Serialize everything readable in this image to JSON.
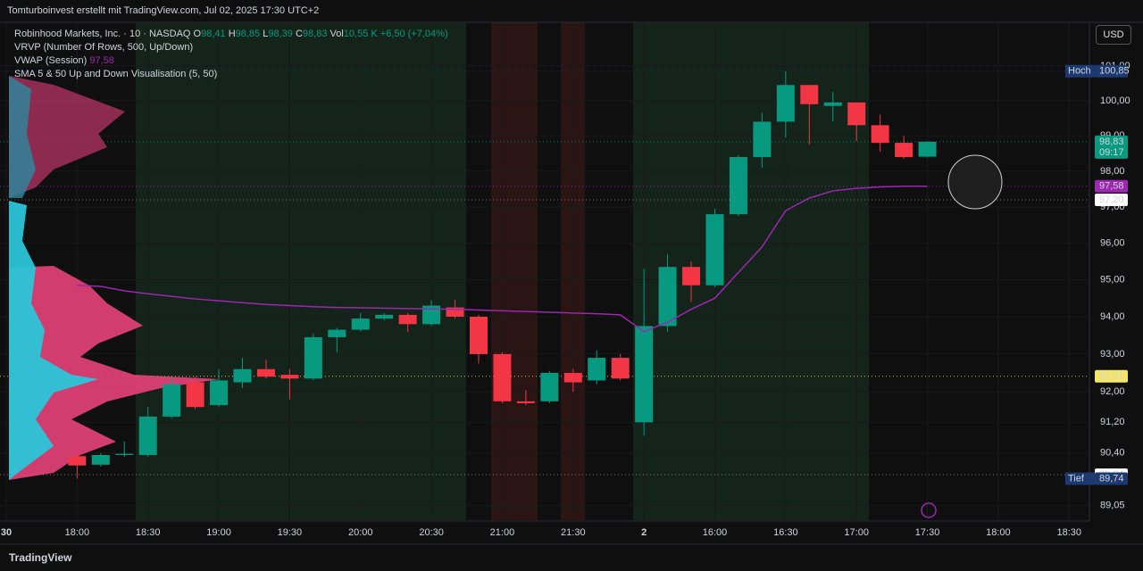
{
  "header": {
    "title": "Tomturboinvest erstellt mit TradingView.com, Jul 02, 2025 17:30 UTC+2"
  },
  "legend": {
    "symbol": "Robinhood Markets, Inc. · 10 · NASDAQ",
    "open_label": "O",
    "open": "98,41",
    "high_label": "H",
    "high": "98,85",
    "low_label": "L",
    "low": "98,39",
    "close_label": "C",
    "close": "98,83",
    "volume_label": "Vol",
    "volume": "10,55 K",
    "change": "+6,50 (+7,04%)"
  },
  "indicators": [
    {
      "name": "VRVP (Number Of Rows, 500, Up/Down)"
    },
    {
      "name": "VWAP (Session)",
      "value": "97,58"
    },
    {
      "name": "SMA 5 & 50 Up and Down Visualisation (5, 50)"
    }
  ],
  "currency": "USD",
  "footer": "TradingView",
  "chart_data": {
    "type": "candlestick",
    "log_scale": true,
    "grid": true,
    "up_color": "#089981",
    "down_color": "#f23645",
    "categories": [
      "30",
      null,
      null,
      "18:00",
      null,
      null,
      "18:30",
      null,
      null,
      "19:00",
      null,
      null,
      "19:30",
      null,
      null,
      "20:00",
      null,
      null,
      "20:30",
      null,
      null,
      "21:00",
      null,
      null,
      "21:30",
      null,
      null,
      "2",
      null,
      null,
      "16:00",
      null,
      null,
      "16:30",
      null,
      null,
      "17:00",
      null,
      null,
      "17:30",
      null,
      null,
      "18:00",
      null,
      null,
      "18:30"
    ],
    "open": [
      null,
      null,
      null,
      90.32,
      90.1,
      90.35,
      90.35,
      91.35,
      92.25,
      91.65,
      92.25,
      92.6,
      92.45,
      92.35,
      93.45,
      93.65,
      93.95,
      94.05,
      93.8,
      94.25,
      94.0,
      93.0,
      91.75,
      91.75,
      92.5,
      92.3,
      92.9,
      91.2,
      93.75,
      95.35,
      94.85,
      96.8,
      98.4,
      99.4,
      100.45,
      99.85,
      99.95,
      99.3,
      98.8,
      98.41,
      null,
      null,
      null,
      null,
      null,
      null
    ],
    "high": [
      null,
      null,
      null,
      90.45,
      90.4,
      90.7,
      91.6,
      92.35,
      92.4,
      92.6,
      92.9,
      92.85,
      92.6,
      93.55,
      93.7,
      94.1,
      94.1,
      94.1,
      94.45,
      94.45,
      94.05,
      93.05,
      92.05,
      92.55,
      92.6,
      93.1,
      93.0,
      95.3,
      95.7,
      95.5,
      96.95,
      98.45,
      99.65,
      100.85,
      100.45,
      100.25,
      99.95,
      99.6,
      99.0,
      98.85,
      null,
      null,
      null,
      null,
      null,
      null
    ],
    "low": [
      null,
      null,
      null,
      89.74,
      90.05,
      90.3,
      90.3,
      91.3,
      91.55,
      91.6,
      92.1,
      92.35,
      91.8,
      92.3,
      93.05,
      93.6,
      93.9,
      93.6,
      93.75,
      93.95,
      92.75,
      91.7,
      91.65,
      91.7,
      92.0,
      92.2,
      92.3,
      90.85,
      93.6,
      94.4,
      94.8,
      96.75,
      98.1,
      98.95,
      98.75,
      99.4,
      98.85,
      98.55,
      98.35,
      98.39,
      null,
      null,
      null,
      null,
      null,
      null
    ],
    "close": [
      null,
      null,
      null,
      90.08,
      90.35,
      90.38,
      91.35,
      92.2,
      91.6,
      92.3,
      92.6,
      92.4,
      92.35,
      93.45,
      93.65,
      93.95,
      94.05,
      93.8,
      94.3,
      94.0,
      93.0,
      91.75,
      91.7,
      92.5,
      92.25,
      92.9,
      92.35,
      93.75,
      95.35,
      94.85,
      96.8,
      98.4,
      99.4,
      100.45,
      99.9,
      99.95,
      99.3,
      98.8,
      98.4,
      98.83,
      null,
      null,
      null,
      null,
      null,
      null
    ],
    "lines": [
      {
        "color": "#9c27b0",
        "values": [
          null,
          null,
          null,
          94.85,
          94.82,
          94.7,
          94.62,
          94.55,
          94.48,
          94.43,
          94.38,
          94.33,
          94.3,
          94.27,
          94.25,
          94.24,
          94.23,
          94.22,
          94.21,
          94.2,
          94.18,
          94.16,
          94.14,
          94.12,
          94.1,
          94.08,
          94.05,
          93.6,
          93.85,
          94.2,
          94.5,
          95.2,
          95.9,
          96.9,
          97.25,
          97.45,
          97.52,
          97.56,
          97.58,
          97.58,
          null,
          null,
          null,
          null,
          null,
          null
        ]
      }
    ],
    "ylim": [
      88.68,
      102.27
    ],
    "yticks": [
      {
        "value": 101,
        "label": "101,00"
      },
      {
        "value": 100,
        "label": "100,00"
      },
      {
        "value": 99,
        "label": "99,00"
      },
      {
        "value": 98,
        "label": "98,00"
      },
      {
        "value": 97,
        "label": "97,00"
      },
      {
        "value": 96,
        "label": "96,00"
      },
      {
        "value": 95,
        "label": "95,00"
      },
      {
        "value": 94,
        "label": "94,00"
      },
      {
        "value": 93,
        "label": "93,00"
      },
      {
        "value": 92,
        "label": "92,00"
      },
      {
        "value": 91.2,
        "label": "91,20"
      },
      {
        "value": 90.4,
        "label": "90,40"
      },
      {
        "value": 89.05,
        "label": "89,05"
      }
    ],
    "price_labels": [
      {
        "value": 100.85,
        "label": "100,85",
        "tag": "Hoch",
        "color": "#1c3a70",
        "text_color": "#ffffff"
      },
      {
        "value": 98.83,
        "label": "98,83",
        "sub": "09:17",
        "color": "#089981",
        "text_color": "#ffffff"
      },
      {
        "value": 97.58,
        "label": "97,58",
        "color": "#9c27b0",
        "text_color": "#ffffff"
      },
      {
        "value": 97.2,
        "label": "97,20",
        "color": "#ffffff",
        "text_color": "#131722"
      },
      {
        "value": 92.41,
        "label": "92,41",
        "color": "#f5e663",
        "text_color": "#131722"
      },
      {
        "value": 89.84,
        "label": "89,84",
        "color": "#ffffff",
        "text_color": "#131722"
      },
      {
        "value": 89.74,
        "label": "89,74",
        "tag": "Tief",
        "color": "#1c3a70",
        "text_color": "#ffffff"
      }
    ]
  }
}
